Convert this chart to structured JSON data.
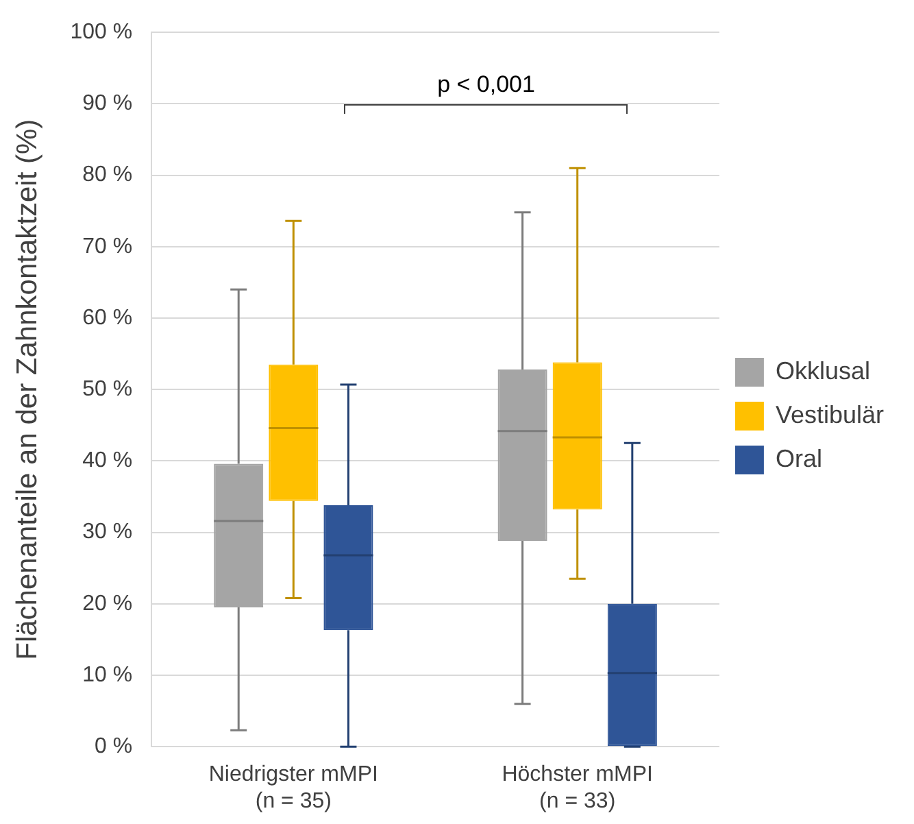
{
  "chart_data": {
    "type": "box",
    "ylabel": "Flächenanteile an der Zahnkontaktzeit (%)",
    "categories": [
      "Niedrigster mMPI\n(n = 35)",
      "Höchster mMPI\n(n = 33)"
    ],
    "series": [
      {
        "name": "Okklusal",
        "color": "#a5a5a5",
        "boxes": [
          {
            "low": 2.3,
            "q1": 19.5,
            "median": 31.6,
            "q3": 39.6,
            "high": 64
          },
          {
            "low": 6,
            "q1": 28.8,
            "median": 44.2,
            "q3": 52.8,
            "high": 74.8
          }
        ]
      },
      {
        "name": "Vestibulär",
        "color": "#ffc000",
        "boxes": [
          {
            "low": 20.8,
            "q1": 34.4,
            "median": 44.6,
            "q3": 53.5,
            "high": 73.6
          },
          {
            "low": 23.5,
            "q1": 33.2,
            "median": 43.3,
            "q3": 53.8,
            "high": 81
          }
        ]
      },
      {
        "name": "Oral",
        "color": "#2f5597",
        "boxes": [
          {
            "low": 0,
            "q1": 16.3,
            "median": 26.8,
            "q3": 33.8,
            "high": 50.7
          },
          {
            "low": 0,
            "q1": 0,
            "median": 10.3,
            "q3": 20,
            "high": 42.5
          }
        ]
      }
    ],
    "ylim": [
      0,
      100
    ],
    "yticks": [
      {
        "value": 0,
        "label": "0 %"
      },
      {
        "value": 10,
        "label": "10 %"
      },
      {
        "value": 20,
        "label": "20 %"
      },
      {
        "value": 30,
        "label": "30 %"
      },
      {
        "value": 40,
        "label": "40 %"
      },
      {
        "value": 50,
        "label": "50 %"
      },
      {
        "value": 60,
        "label": "60 %"
      },
      {
        "value": 70,
        "label": "70 %"
      },
      {
        "value": 80,
        "label": "80 %"
      },
      {
        "value": 90,
        "label": "90 %"
      },
      {
        "value": 100,
        "label": "100 %"
      }
    ],
    "grid": "y",
    "legend": "right",
    "annotations": [
      "p < 0,001"
    ]
  }
}
